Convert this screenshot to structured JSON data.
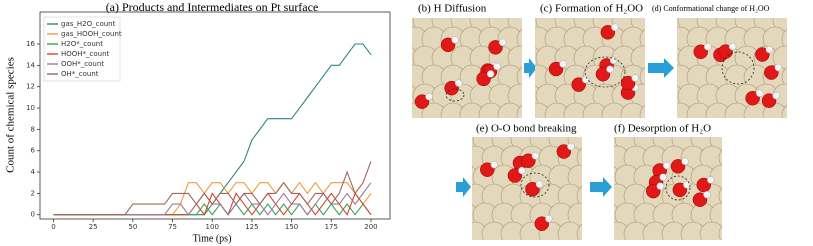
{
  "chart_data": {
    "type": "line",
    "title": "(a) Products and Intermediates on Pt surface",
    "x_label": "Time (ps)",
    "y_label": "Count of chemical species",
    "x": [
      0,
      5,
      10,
      15,
      20,
      25,
      30,
      35,
      40,
      45,
      50,
      55,
      60,
      65,
      70,
      75,
      80,
      85,
      90,
      95,
      100,
      105,
      110,
      115,
      120,
      125,
      130,
      135,
      140,
      145,
      150,
      155,
      160,
      165,
      170,
      175,
      180,
      185,
      190,
      195,
      200
    ],
    "series": [
      {
        "name": "gas_H2O_count",
        "color": "#2f8585",
        "values": [
          0,
          0,
          0,
          0,
          0,
          0,
          0,
          0,
          0,
          0,
          0,
          0,
          0,
          0,
          0,
          0,
          0,
          0,
          0,
          0,
          1,
          2,
          3,
          4,
          5,
          7,
          8,
          9,
          9,
          9,
          9,
          10,
          11,
          12,
          13,
          14,
          14,
          15,
          16,
          16,
          15
        ]
      },
      {
        "name": "gas_HOOH_count",
        "color": "#f29a3a",
        "values": [
          0,
          0,
          0,
          0,
          0,
          0,
          0,
          0,
          0,
          0,
          0,
          0,
          0,
          0,
          0,
          0,
          1,
          3,
          3,
          2,
          3,
          3,
          2,
          3,
          3,
          2,
          3,
          3,
          2,
          3,
          2,
          3,
          2,
          3,
          2,
          3,
          3,
          3,
          2,
          1,
          2
        ]
      },
      {
        "name": "H2O*_count",
        "color": "#3aa55a",
        "values": [
          0,
          0,
          0,
          0,
          0,
          0,
          0,
          0,
          0,
          0,
          0,
          0,
          0,
          0,
          0,
          0,
          0,
          0,
          0,
          1,
          0,
          1,
          0,
          1,
          0,
          1,
          0,
          1,
          0,
          1,
          0,
          1,
          0,
          1,
          0,
          1,
          0,
          1,
          0,
          1,
          0
        ]
      },
      {
        "name": "HOOH*_count",
        "color": "#d6452f",
        "values": [
          0,
          0,
          0,
          0,
          0,
          0,
          0,
          0,
          0,
          0,
          0,
          0,
          0,
          0,
          0,
          0,
          0,
          0,
          1,
          0,
          2,
          1,
          0,
          2,
          1,
          0,
          1,
          2,
          1,
          0,
          1,
          2,
          1,
          0,
          1,
          2,
          1,
          0,
          2,
          1,
          0
        ]
      },
      {
        "name": "OOH*_count",
        "color": "#9c7b9a",
        "values": [
          0,
          0,
          0,
          0,
          0,
          0,
          0,
          0,
          0,
          0,
          0,
          0,
          0,
          0,
          0,
          1,
          1,
          0,
          1,
          2,
          1,
          1,
          0,
          1,
          2,
          1,
          1,
          0,
          1,
          2,
          1,
          1,
          0,
          1,
          2,
          1,
          1,
          2,
          1,
          2,
          3
        ]
      },
      {
        "name": "OH*_count",
        "color": "#a0665a",
        "values": [
          0,
          0,
          0,
          0,
          0,
          0,
          0,
          0,
          0,
          0,
          1,
          1,
          1,
          1,
          1,
          2,
          2,
          2,
          1,
          2,
          1,
          2,
          2,
          1,
          2,
          2,
          1,
          2,
          2,
          3,
          2,
          2,
          1,
          2,
          2,
          1,
          2,
          4,
          2,
          3,
          5
        ]
      }
    ],
    "xlim": [
      -8.5,
      212
    ],
    "ylim": [
      -0.4,
      19
    ],
    "xticks": [
      0,
      25,
      50,
      75,
      100,
      125,
      150,
      175,
      200
    ],
    "yticks": [
      0,
      2,
      4,
      6,
      8,
      10,
      12,
      14,
      16
    ],
    "grid": false,
    "legend": "upper left"
  },
  "panels": [
    {
      "label": "(b) H Diffusion"
    },
    {
      "label": "(c) Formation of H₂OO"
    },
    {
      "label": "(d) Conformational change of H₂OO"
    },
    {
      "label": "(e) O-O bond breaking"
    },
    {
      "label": "(f) Desorption of H₂O"
    }
  ]
}
